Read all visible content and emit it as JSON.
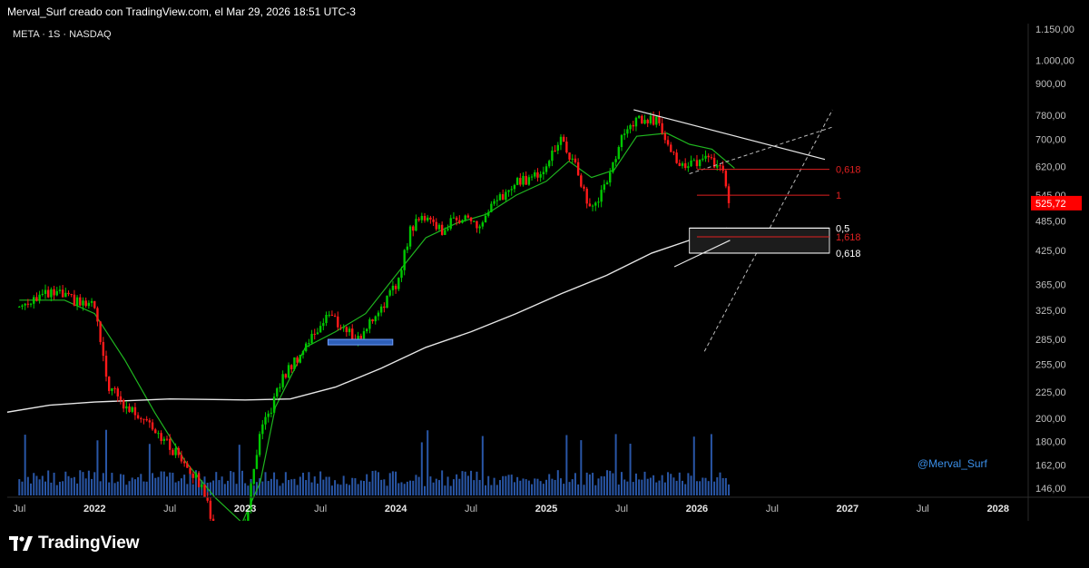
{
  "header": {
    "caption": "Merval_Surf creado con TradingView.com, el Mar 29, 2026 18:51 UTC-3"
  },
  "symbol": "META · 1S · NASDAQ",
  "watermark": "@Merval_Surf",
  "brand": "TradingView",
  "last_price": "525,72",
  "colors": {
    "up": "#00c800",
    "down": "#ff1a1a",
    "ma_fast": "#1fb51f",
    "ma_slow": "#e6e6e6",
    "volume": "#2e5fb8",
    "price_tag": "#ff0000",
    "fib_red": "#e02020"
  },
  "fib_labels": {
    "l1": "0,618",
    "l2": "1",
    "l3": "0,5",
    "l4": "1,618",
    "l5": "0,618"
  },
  "chart_data": {
    "type": "candlestick",
    "y_scale": "log",
    "y_ticks": [
      "1.150,00",
      "1.000,00",
      "900,00",
      "780,00",
      "700,00",
      "620,00",
      "545,00",
      "485,00",
      "425,00",
      "365,00",
      "325,00",
      "285,00",
      "255,00",
      "225,00",
      "200,00",
      "180,00",
      "162,00",
      "146,00"
    ],
    "x_ticks": [
      "Jul",
      "2022",
      "Jul",
      "2023",
      "Jul",
      "2024",
      "Jul",
      "2025",
      "Jul",
      "2026",
      "Jul",
      "2027",
      "Jul",
      "2028"
    ],
    "last_close": 525.72,
    "price_anchors": [
      [
        2021.5,
        330
      ],
      [
        2021.6,
        345
      ],
      [
        2021.75,
        350
      ],
      [
        2021.9,
        335
      ],
      [
        2022.0,
        330
      ],
      [
        2022.08,
        235
      ],
      [
        2022.2,
        210
      ],
      [
        2022.35,
        200
      ],
      [
        2022.5,
        175
      ],
      [
        2022.6,
        165
      ],
      [
        2022.75,
        140
      ],
      [
        2022.85,
        95
      ],
      [
        2023.0,
        125
      ],
      [
        2023.1,
        185
      ],
      [
        2023.25,
        240
      ],
      [
        2023.45,
        290
      ],
      [
        2023.55,
        320
      ],
      [
        2023.65,
        300
      ],
      [
        2023.75,
        285
      ],
      [
        2023.9,
        330
      ],
      [
        2024.0,
        360
      ],
      [
        2024.1,
        470
      ],
      [
        2024.2,
        500
      ],
      [
        2024.3,
        465
      ],
      [
        2024.45,
        500
      ],
      [
        2024.55,
        470
      ],
      [
        2024.65,
        520
      ],
      [
        2024.8,
        575
      ],
      [
        2024.95,
        600
      ],
      [
        2025.1,
        700
      ],
      [
        2025.2,
        610
      ],
      [
        2025.3,
        505
      ],
      [
        2025.4,
        580
      ],
      [
        2025.5,
        700
      ],
      [
        2025.6,
        765
      ],
      [
        2025.75,
        760
      ],
      [
        2025.85,
        650
      ],
      [
        2025.92,
        610
      ],
      [
        2026.05,
        650
      ],
      [
        2026.12,
        630
      ],
      [
        2026.18,
        590
      ],
      [
        2026.23,
        526
      ]
    ],
    "ma_fast": [
      [
        2021.5,
        340
      ],
      [
        2021.8,
        340
      ],
      [
        2022.0,
        320
      ],
      [
        2022.2,
        260
      ],
      [
        2022.4,
        205
      ],
      [
        2022.6,
        165
      ],
      [
        2022.8,
        140
      ],
      [
        2022.98,
        125
      ],
      [
        2023.1,
        150
      ],
      [
        2023.2,
        210
      ],
      [
        2023.4,
        275
      ],
      [
        2023.6,
        295
      ],
      [
        2023.8,
        320
      ],
      [
        2024.0,
        380
      ],
      [
        2024.2,
        450
      ],
      [
        2024.4,
        480
      ],
      [
        2024.6,
        500
      ],
      [
        2024.8,
        545
      ],
      [
        2025.0,
        580
      ],
      [
        2025.15,
        635
      ],
      [
        2025.3,
        590
      ],
      [
        2025.45,
        610
      ],
      [
        2025.6,
        710
      ],
      [
        2025.8,
        720
      ],
      [
        2025.95,
        685
      ],
      [
        2026.1,
        670
      ],
      [
        2026.25,
        615
      ]
    ],
    "ma_slow": [
      [
        2021.4,
        205
      ],
      [
        2021.7,
        212
      ],
      [
        2022.0,
        215
      ],
      [
        2022.5,
        218
      ],
      [
        2023.0,
        217
      ],
      [
        2023.3,
        218
      ],
      [
        2023.6,
        230
      ],
      [
        2023.9,
        250
      ],
      [
        2024.2,
        275
      ],
      [
        2024.5,
        295
      ],
      [
        2024.8,
        320
      ],
      [
        2025.1,
        350
      ],
      [
        2025.4,
        380
      ],
      [
        2025.7,
        420
      ],
      [
        2026.0,
        450
      ],
      [
        2026.2,
        470
      ]
    ],
    "annotations": {
      "fib_levels": [
        {
          "label": "0,618",
          "price": 612
        },
        {
          "label": "1",
          "price": 545
        },
        {
          "label": "0,5",
          "price": 470
        },
        {
          "label": "1,618",
          "price": 452
        },
        {
          "label": "0,618",
          "price": 420
        }
      ],
      "zone": [
        420,
        470
      ],
      "box_2023": [
        278,
        285
      ]
    }
  }
}
